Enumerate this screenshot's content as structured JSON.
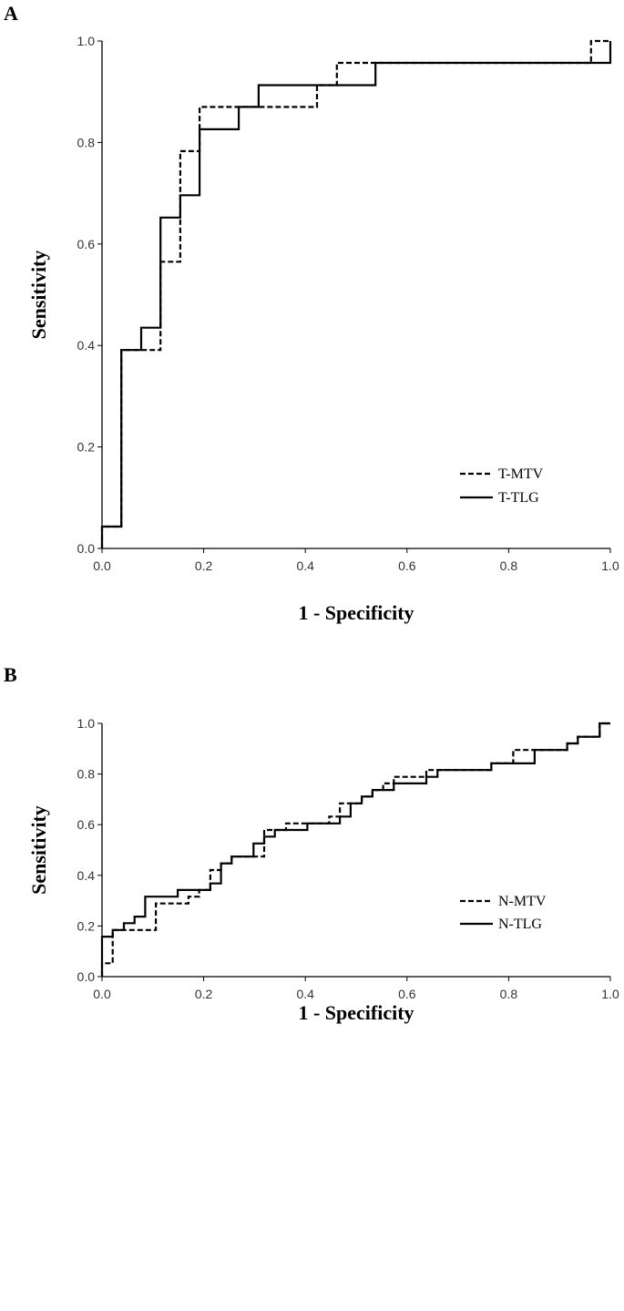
{
  "chart_data": [
    {
      "panel_label": "A",
      "type": "line",
      "xlabel": "1 - Specificity",
      "ylabel": "Sensitivity",
      "xlim": [
        0,
        1
      ],
      "ylim": [
        0,
        1
      ],
      "xticks": [
        "0.0",
        "0.2",
        "0.4",
        "0.6",
        "0.8",
        "1.0"
      ],
      "yticks": [
        "0.0",
        "0.2",
        "0.4",
        "0.6",
        "0.8",
        "1.0"
      ],
      "grid": false,
      "legend_position": "bottom-right",
      "series": [
        {
          "name": "T-MTV",
          "dash": "dashed",
          "points": [
            [
              0,
              0
            ],
            [
              0,
              0.043
            ],
            [
              0.038,
              0.043
            ],
            [
              0.038,
              0.391
            ],
            [
              0.115,
              0.391
            ],
            [
              0.115,
              0.565
            ],
            [
              0.154,
              0.565
            ],
            [
              0.154,
              0.783
            ],
            [
              0.192,
              0.783
            ],
            [
              0.192,
              0.87
            ],
            [
              0.423,
              0.87
            ],
            [
              0.423,
              0.913
            ],
            [
              0.462,
              0.913
            ],
            [
              0.462,
              0.957
            ],
            [
              0.962,
              0.957
            ],
            [
              0.962,
              1
            ],
            [
              1,
              1
            ]
          ]
        },
        {
          "name": "T-TLG",
          "dash": "solid",
          "points": [
            [
              0,
              0
            ],
            [
              0,
              0.043
            ],
            [
              0.038,
              0.043
            ],
            [
              0.038,
              0.391
            ],
            [
              0.077,
              0.391
            ],
            [
              0.077,
              0.435
            ],
            [
              0.115,
              0.435
            ],
            [
              0.115,
              0.652
            ],
            [
              0.154,
              0.652
            ],
            [
              0.154,
              0.696
            ],
            [
              0.192,
              0.696
            ],
            [
              0.192,
              0.826
            ],
            [
              0.269,
              0.826
            ],
            [
              0.269,
              0.87
            ],
            [
              0.308,
              0.87
            ],
            [
              0.308,
              0.913
            ],
            [
              0.538,
              0.913
            ],
            [
              0.538,
              0.957
            ],
            [
              1,
              0.957
            ],
            [
              1,
              1
            ]
          ]
        }
      ]
    },
    {
      "panel_label": "B",
      "type": "line",
      "xlabel": "1 - Specificity",
      "ylabel": "Sensitivity",
      "xlim": [
        0,
        1
      ],
      "ylim": [
        0,
        1
      ],
      "xticks": [
        "0.0",
        "0.2",
        "0.4",
        "0.6",
        "0.8",
        "1.0"
      ],
      "yticks": [
        "0.0",
        "0.2",
        "0.4",
        "0.6",
        "0.8",
        "1.0"
      ],
      "grid": false,
      "legend_position": "bottom-right",
      "series": [
        {
          "name": "N-MTV",
          "dash": "dashed",
          "points": [
            [
              0,
              0
            ],
            [
              0,
              0.053
            ],
            [
              0.021,
              0.053
            ],
            [
              0.021,
              0.184
            ],
            [
              0.106,
              0.184
            ],
            [
              0.106,
              0.289
            ],
            [
              0.17,
              0.289
            ],
            [
              0.17,
              0.316
            ],
            [
              0.191,
              0.316
            ],
            [
              0.191,
              0.342
            ],
            [
              0.213,
              0.342
            ],
            [
              0.213,
              0.421
            ],
            [
              0.234,
              0.421
            ],
            [
              0.234,
              0.447
            ],
            [
              0.255,
              0.447
            ],
            [
              0.255,
              0.474
            ],
            [
              0.319,
              0.474
            ],
            [
              0.319,
              0.579
            ],
            [
              0.362,
              0.579
            ],
            [
              0.362,
              0.605
            ],
            [
              0.447,
              0.605
            ],
            [
              0.447,
              0.632
            ],
            [
              0.468,
              0.632
            ],
            [
              0.468,
              0.684
            ],
            [
              0.511,
              0.684
            ],
            [
              0.511,
              0.711
            ],
            [
              0.532,
              0.711
            ],
            [
              0.532,
              0.737
            ],
            [
              0.553,
              0.737
            ],
            [
              0.553,
              0.763
            ],
            [
              0.574,
              0.763
            ],
            [
              0.574,
              0.789
            ],
            [
              0.638,
              0.789
            ],
            [
              0.638,
              0.816
            ],
            [
              0.766,
              0.816
            ],
            [
              0.766,
              0.842
            ],
            [
              0.809,
              0.842
            ],
            [
              0.809,
              0.895
            ],
            [
              0.915,
              0.895
            ],
            [
              0.915,
              0.921
            ],
            [
              0.936,
              0.921
            ],
            [
              0.936,
              0.947
            ],
            [
              0.979,
              0.947
            ],
            [
              0.979,
              1
            ],
            [
              1,
              1
            ]
          ]
        },
        {
          "name": "N-TLG",
          "dash": "solid",
          "points": [
            [
              0,
              0
            ],
            [
              0,
              0.158
            ],
            [
              0.021,
              0.158
            ],
            [
              0.021,
              0.184
            ],
            [
              0.043,
              0.184
            ],
            [
              0.043,
              0.211
            ],
            [
              0.064,
              0.211
            ],
            [
              0.064,
              0.237
            ],
            [
              0.085,
              0.237
            ],
            [
              0.085,
              0.316
            ],
            [
              0.149,
              0.316
            ],
            [
              0.149,
              0.342
            ],
            [
              0.213,
              0.342
            ],
            [
              0.213,
              0.368
            ],
            [
              0.234,
              0.368
            ],
            [
              0.234,
              0.447
            ],
            [
              0.255,
              0.447
            ],
            [
              0.255,
              0.474
            ],
            [
              0.298,
              0.474
            ],
            [
              0.298,
              0.526
            ],
            [
              0.319,
              0.526
            ],
            [
              0.319,
              0.553
            ],
            [
              0.34,
              0.553
            ],
            [
              0.34,
              0.579
            ],
            [
              0.404,
              0.579
            ],
            [
              0.404,
              0.605
            ],
            [
              0.468,
              0.605
            ],
            [
              0.468,
              0.632
            ],
            [
              0.489,
              0.632
            ],
            [
              0.489,
              0.684
            ],
            [
              0.511,
              0.684
            ],
            [
              0.511,
              0.711
            ],
            [
              0.532,
              0.711
            ],
            [
              0.532,
              0.737
            ],
            [
              0.574,
              0.737
            ],
            [
              0.574,
              0.763
            ],
            [
              0.638,
              0.763
            ],
            [
              0.638,
              0.789
            ],
            [
              0.66,
              0.789
            ],
            [
              0.66,
              0.816
            ],
            [
              0.766,
              0.816
            ],
            [
              0.766,
              0.842
            ],
            [
              0.851,
              0.842
            ],
            [
              0.851,
              0.895
            ],
            [
              0.915,
              0.895
            ],
            [
              0.915,
              0.921
            ],
            [
              0.936,
              0.921
            ],
            [
              0.936,
              0.947
            ],
            [
              0.979,
              0.947
            ],
            [
              0.979,
              1
            ],
            [
              1,
              1
            ]
          ]
        }
      ]
    }
  ]
}
